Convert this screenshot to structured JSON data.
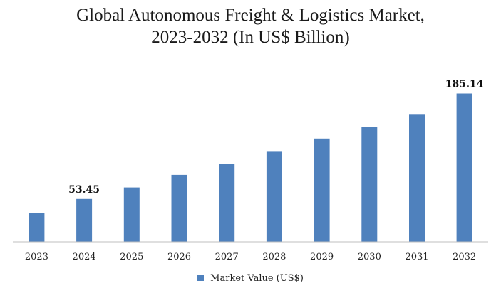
{
  "chart_data": {
    "type": "bar",
    "title_line1": "Global Autonomous Freight & Logistics Market,",
    "title_line2": "2023-2032 (In US$ Billion)",
    "categories": [
      "2023",
      "2024",
      "2025",
      "2026",
      "2027",
      "2028",
      "2029",
      "2030",
      "2031",
      "2032"
    ],
    "series": [
      {
        "name": "Market Value (US$)",
        "color": "#4f81bd",
        "values": [
          36.1,
          53.45,
          67.8,
          83.6,
          97.4,
          112.4,
          128.9,
          143.7,
          158.7,
          185.14
        ]
      }
    ],
    "data_labels": [
      {
        "category": "2024",
        "text": "53.45"
      },
      {
        "category": "2032",
        "text": "185.14"
      }
    ],
    "ylim": [
      0,
      190
    ],
    "grid": false,
    "legend_position": "bottom"
  }
}
